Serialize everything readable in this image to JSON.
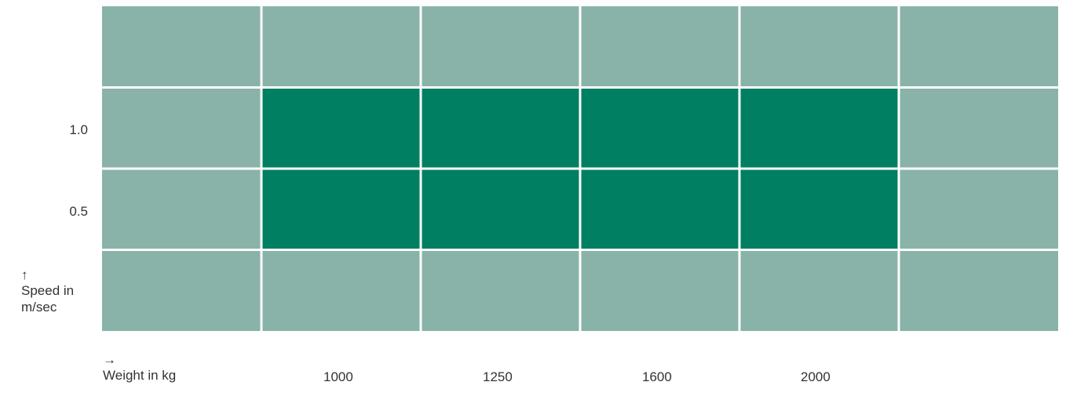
{
  "chart_data": {
    "type": "heatmap",
    "x_axis": {
      "arrow": "→",
      "label": "Weight in kg",
      "tick_labels": [
        "",
        "1000",
        "1250",
        "1600",
        "2000",
        ""
      ]
    },
    "y_axis": {
      "arrow": "↑",
      "label": "Speed in m/sec",
      "tick_labels_top_to_bottom": [
        "",
        "1.0",
        "0.5",
        ""
      ]
    },
    "grid": {
      "columns": 6,
      "rows": 4,
      "cells_top_to_bottom": [
        [
          0,
          0,
          0,
          0,
          0,
          0
        ],
        [
          0,
          1,
          1,
          1,
          1,
          0
        ],
        [
          0,
          1,
          1,
          1,
          1,
          0
        ],
        [
          0,
          0,
          0,
          0,
          0,
          0
        ]
      ]
    },
    "colors": {
      "highlight": "#007F62",
      "base": "#89B3A8",
      "gridline": "#ffffff"
    }
  }
}
